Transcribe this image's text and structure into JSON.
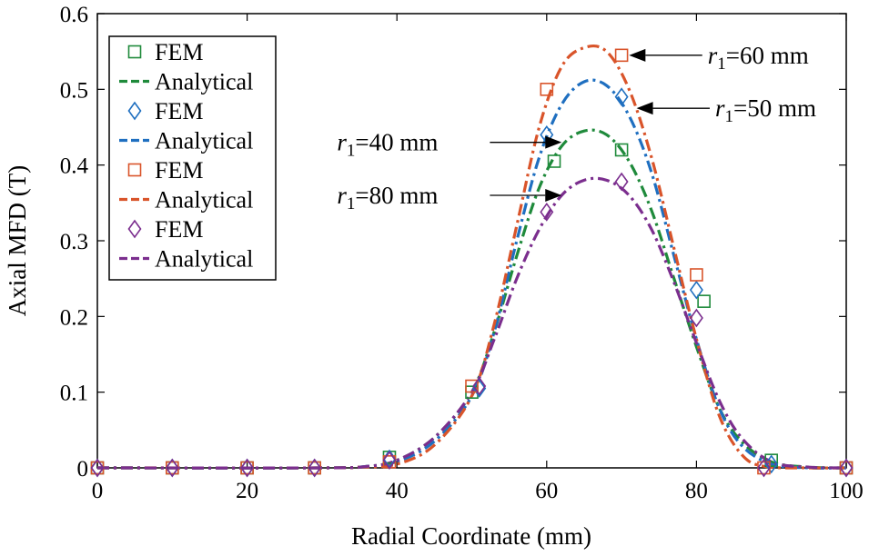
{
  "chart_data": {
    "type": "line",
    "title": "",
    "xlabel": "Radial Coordinate (mm)",
    "ylabel": "Axial MFD (T)",
    "xlim": [
      0,
      100
    ],
    "ylim": [
      0,
      0.6
    ],
    "xticks": [
      "0",
      "20",
      "40",
      "60",
      "80",
      "100"
    ],
    "yticks": [
      "0",
      "0.1",
      "0.2",
      "0.3",
      "0.4",
      "0.5",
      "0.6"
    ],
    "grid": false,
    "legend_position": "top-left",
    "series": [
      {
        "name": "r1=40 mm",
        "color": "#1f8a3b",
        "fem_label": "FEM",
        "analytical_label": "Analytical",
        "fem_marker": "square",
        "fem_x": [
          0,
          10,
          20,
          29,
          39,
          50,
          61,
          70,
          81,
          90,
          100
        ],
        "fem_y": [
          0,
          0,
          0,
          0,
          0.014,
          0.1,
          0.405,
          0.42,
          0.22,
          0.01,
          0
        ],
        "analytical_x": [
          0,
          30,
          36,
          40,
          45,
          50,
          53,
          56,
          59,
          62,
          65,
          68,
          71,
          74,
          77,
          80,
          83,
          86,
          90,
          95,
          100
        ],
        "analytical_y": [
          0,
          0,
          0.002,
          0.01,
          0.04,
          0.1,
          0.18,
          0.28,
          0.37,
          0.425,
          0.445,
          0.44,
          0.405,
          0.34,
          0.25,
          0.16,
          0.08,
          0.035,
          0.008,
          0.001,
          0
        ]
      },
      {
        "name": "r1=50 mm",
        "color": "#1f6fc0",
        "fem_label": "FEM",
        "analytical_label": "Analytical",
        "fem_marker": "diamond",
        "fem_x": [
          0,
          10,
          20,
          29,
          39,
          51,
          60,
          70,
          80,
          90,
          100
        ],
        "fem_y": [
          0,
          0,
          0,
          0,
          0.012,
          0.105,
          0.44,
          0.49,
          0.235,
          0.005,
          0
        ],
        "analytical_x": [
          0,
          30,
          36,
          40,
          45,
          50,
          53,
          56,
          59,
          62,
          65,
          68,
          71,
          74,
          77,
          80,
          83,
          86,
          90,
          95,
          100
        ],
        "analytical_y": [
          0,
          0,
          0.002,
          0.008,
          0.035,
          0.095,
          0.18,
          0.3,
          0.41,
          0.48,
          0.51,
          0.505,
          0.465,
          0.39,
          0.28,
          0.17,
          0.08,
          0.03,
          0.005,
          0,
          0
        ]
      },
      {
        "name": "r1=60 mm",
        "color": "#d9542a",
        "fem_label": "FEM",
        "analytical_label": "Analytical",
        "fem_marker": "square",
        "fem_x": [
          0,
          10,
          20,
          29,
          39,
          50,
          60,
          70,
          80,
          89,
          100
        ],
        "fem_y": [
          0,
          0,
          0,
          0,
          0.008,
          0.108,
          0.5,
          0.545,
          0.255,
          0,
          0
        ],
        "analytical_x": [
          0,
          30,
          35,
          40,
          45,
          50,
          53,
          56,
          59,
          62,
          65,
          68,
          71,
          74,
          77,
          80,
          83,
          86,
          89,
          95,
          100
        ],
        "analytical_y": [
          0,
          0,
          0.001,
          0.005,
          0.03,
          0.095,
          0.19,
          0.32,
          0.45,
          0.53,
          0.555,
          0.55,
          0.5,
          0.41,
          0.29,
          0.17,
          0.07,
          0.018,
          0.002,
          0,
          0
        ]
      },
      {
        "name": "r1=80 mm",
        "color": "#7b2e8e",
        "fem_label": "FEM",
        "analytical_label": "Analytical",
        "fem_marker": "diamond",
        "fem_x": [
          0,
          10,
          20,
          29,
          39,
          51,
          60,
          70,
          80,
          89,
          100
        ],
        "fem_y": [
          0,
          0,
          0,
          0,
          0.01,
          0.108,
          0.338,
          0.378,
          0.198,
          0,
          0
        ],
        "analytical_x": [
          0,
          30,
          36,
          40,
          45,
          50,
          53,
          56,
          59,
          62,
          65,
          68,
          71,
          74,
          77,
          80,
          83,
          86,
          90,
          95,
          100
        ],
        "analytical_y": [
          0,
          0,
          0.002,
          0.01,
          0.04,
          0.1,
          0.17,
          0.25,
          0.315,
          0.36,
          0.38,
          0.38,
          0.36,
          0.315,
          0.245,
          0.165,
          0.09,
          0.04,
          0.008,
          0.001,
          0
        ]
      }
    ],
    "annotations": [
      {
        "prefix": "r",
        "sub": "1",
        "suffix": "=60 mm",
        "target_x": 71,
        "target_y": 0.545,
        "text_x": 81.5,
        "text_y": 0.545
      },
      {
        "prefix": "r",
        "sub": "1",
        "suffix": "=50 mm",
        "target_x": 72,
        "target_y": 0.475,
        "text_x": 82.5,
        "text_y": 0.475
      },
      {
        "prefix": "r",
        "sub": "1",
        "suffix": "=40 mm",
        "target_x": 62,
        "target_y": 0.43,
        "text_x": 32,
        "text_y": 0.43
      },
      {
        "prefix": "r",
        "sub": "1",
        "suffix": "=80 mm",
        "target_x": 62,
        "target_y": 0.36,
        "text_x": 32,
        "text_y": 0.36
      }
    ]
  }
}
